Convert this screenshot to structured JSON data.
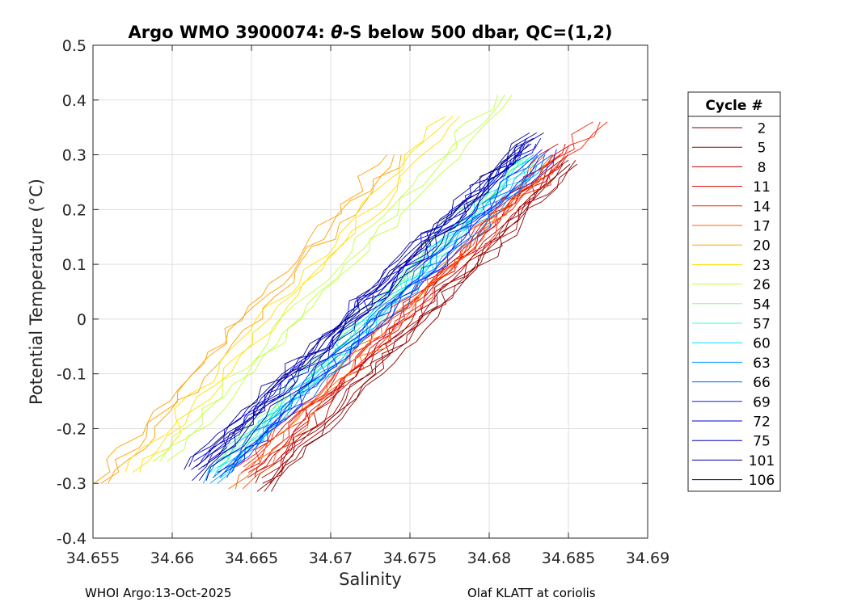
{
  "chart_data": {
    "type": "line",
    "title_prefix": "Argo WMO 3900074: ",
    "title_theta": "θ",
    "title_suffix": "-S below 500 dbar,  QC=(1,2)",
    "xlabel": "Salinity",
    "ylabel": "Potential Temperature (°C)",
    "xlim": [
      34.655,
      34.69
    ],
    "ylim": [
      -0.4,
      0.5
    ],
    "xticks": [
      34.655,
      34.66,
      34.665,
      34.67,
      34.675,
      34.68,
      34.685,
      34.69
    ],
    "xtick_labels": [
      "34.655",
      "34.66",
      "34.665",
      "34.67",
      "34.675",
      "34.68",
      "34.685",
      "34.69"
    ],
    "yticks": [
      0.5,
      0.4,
      0.3,
      0.2,
      0.1,
      0,
      -0.1,
      -0.2,
      -0.3,
      -0.4
    ],
    "ytick_labels": [
      "0.5",
      "0.4",
      "0.3",
      "0.2",
      "0.1",
      "0",
      "-0.1",
      "-0.2",
      "-0.3",
      "-0.4"
    ],
    "grid": true,
    "legend_title": "Cycle #",
    "legend_position": "right",
    "series": [
      {
        "name": "2",
        "color": "#800000",
        "s_start": 34.6658,
        "t_start": -0.315,
        "s_end": 34.6851,
        "t_end": 0.283
      },
      {
        "name": "5",
        "color": "#a00000",
        "s_start": 34.6657,
        "t_start": -0.3,
        "s_end": 34.685,
        "t_end": 0.29
      },
      {
        "name": "8",
        "color": "#c00000",
        "s_start": 34.6652,
        "t_start": -0.29,
        "s_end": 34.6845,
        "t_end": 0.3
      },
      {
        "name": "11",
        "color": "#e00000",
        "s_start": 34.6648,
        "t_start": -0.28,
        "s_end": 34.6848,
        "t_end": 0.32
      },
      {
        "name": "14",
        "color": "#ff2000",
        "s_start": 34.6645,
        "t_start": -0.27,
        "s_end": 34.687,
        "t_end": 0.36
      },
      {
        "name": "17",
        "color": "#ff6000",
        "s_start": 34.664,
        "t_start": -0.31,
        "s_end": 34.684,
        "t_end": 0.3
      },
      {
        "name": "20",
        "color": "#ffa000",
        "s_start": 34.6555,
        "t_start": -0.3,
        "s_end": 34.674,
        "t_end": 0.3
      },
      {
        "name": "23",
        "color": "#ffe000",
        "s_start": 34.6575,
        "t_start": -0.28,
        "s_end": 34.6777,
        "t_end": 0.37
      },
      {
        "name": "26",
        "color": "#c0ff40",
        "s_start": 34.6592,
        "t_start": -0.26,
        "s_end": 34.681,
        "t_end": 0.41
      },
      {
        "name": "54",
        "color": "#80ff80",
        "s_start": 34.663,
        "t_start": -0.27,
        "s_end": 34.682,
        "t_end": 0.3
      },
      {
        "name": "57",
        "color": "#40ffc0",
        "s_start": 34.6628,
        "t_start": -0.28,
        "s_end": 34.6825,
        "t_end": 0.29
      },
      {
        "name": "60",
        "color": "#00e0ff",
        "s_start": 34.6626,
        "t_start": -0.29,
        "s_end": 34.6828,
        "t_end": 0.3
      },
      {
        "name": "63",
        "color": "#00a0ff",
        "s_start": 34.6624,
        "t_start": -0.3,
        "s_end": 34.683,
        "t_end": 0.28
      },
      {
        "name": "66",
        "color": "#0060ff",
        "s_start": 34.663,
        "t_start": -0.29,
        "s_end": 34.6835,
        "t_end": 0.3
      },
      {
        "name": "69",
        "color": "#0020ff",
        "s_start": 34.6633,
        "t_start": -0.28,
        "s_end": 34.6838,
        "t_end": 0.31
      },
      {
        "name": "72",
        "color": "#0000e0",
        "s_start": 34.6618,
        "t_start": -0.26,
        "s_end": 34.6825,
        "t_end": 0.32
      },
      {
        "name": "75",
        "color": "#0000c0",
        "s_start": 34.6615,
        "t_start": -0.27,
        "s_end": 34.6828,
        "t_end": 0.33
      },
      {
        "name": "101",
        "color": "#0000a0",
        "s_start": 34.6617,
        "t_start": -0.295,
        "s_end": 34.683,
        "t_end": 0.34
      },
      {
        "name": "106",
        "color": "#000080",
        "s_start": 34.6612,
        "t_start": -0.275,
        "s_end": 34.6822,
        "t_end": 0.32
      }
    ]
  },
  "footer": {
    "left": "WHOI Argo:13-Oct-2025",
    "right": "Olaf KLATT at coriolis"
  }
}
